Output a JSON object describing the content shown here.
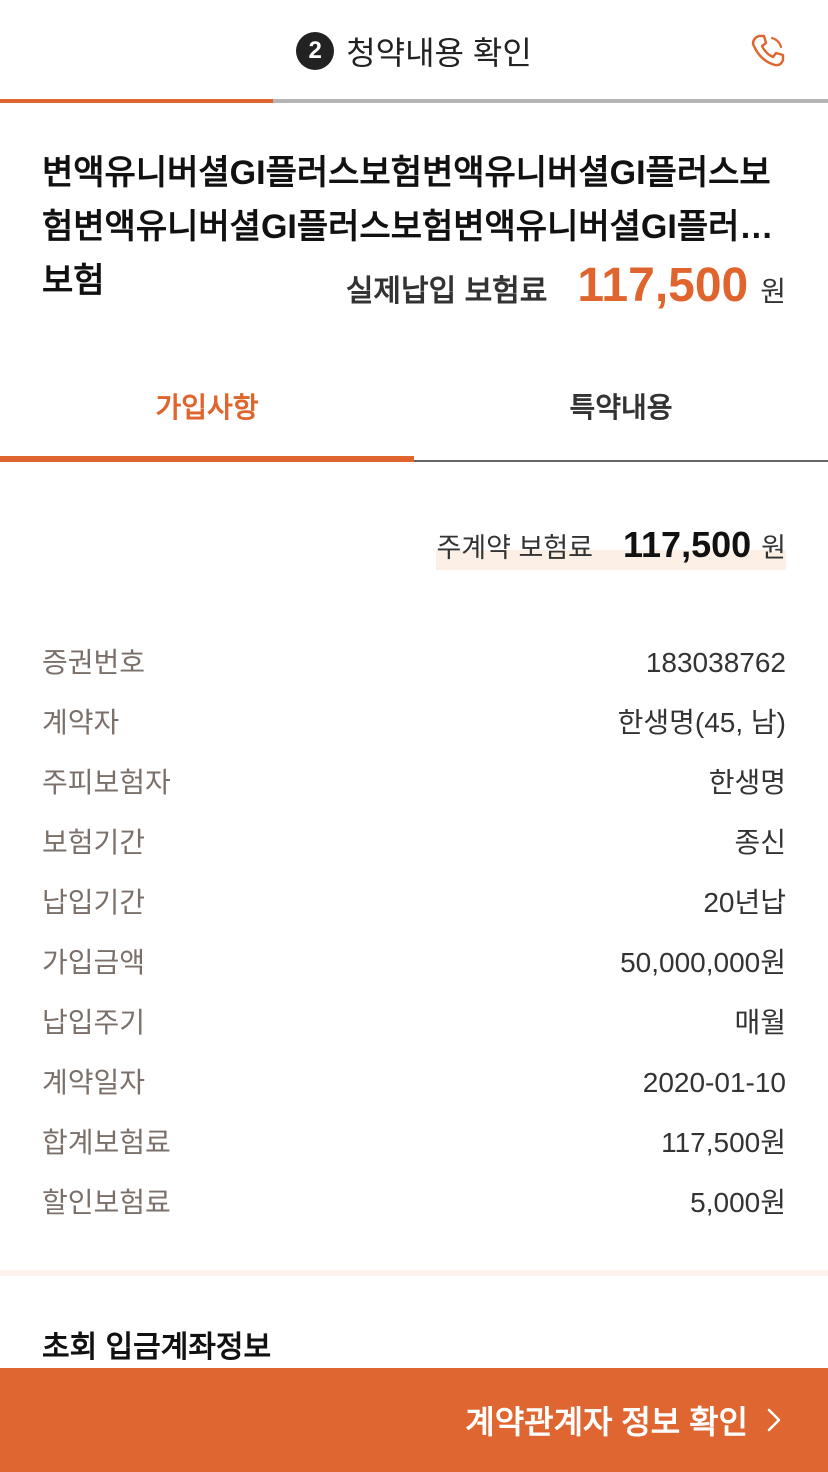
{
  "header": {
    "step_number": "2",
    "title": "청약내용 확인",
    "progress": 0.33
  },
  "product": {
    "name": "변액유니버셜GI플러스보험변액유니버셜GI플러스보험변액유니버셜GI플러스보험변액유니버셜GI플러스보험"
  },
  "actual_premium": {
    "label": "실제납입 보험료",
    "value": "117,500",
    "unit": "원"
  },
  "tabs": [
    {
      "label": "가입사항",
      "active": true
    },
    {
      "label": "특약내용",
      "active": false
    }
  ],
  "main_premium": {
    "label": "주계약 보험료",
    "value": "117,500",
    "unit": "원"
  },
  "details": [
    {
      "label": "증권번호",
      "value": "183038762"
    },
    {
      "label": "계약자",
      "value": "한생명(45, 남)"
    },
    {
      "label": "주피보험자",
      "value": "한생명"
    },
    {
      "label": "보험기간",
      "value": "종신"
    },
    {
      "label": "납입기간",
      "value": "20년납"
    },
    {
      "label": "가입금액",
      "value": "50,000,000원"
    },
    {
      "label": "납입주기",
      "value": "매월"
    },
    {
      "label": "계약일자",
      "value": "2020-01-10"
    },
    {
      "label": "합계보험료",
      "value": "117,500원"
    },
    {
      "label": "할인보험료",
      "value": "5,000원"
    }
  ],
  "section_title": "초회 입금계좌정보",
  "cta": {
    "label": "계약관계자 정보 확인"
  },
  "colors": {
    "accent": "#e0642e",
    "cta_bg": "#e06631",
    "tab_underline": "#666666"
  },
  "icons": {
    "phone": "phone-icon",
    "cta_arrow": "chevron-right-icon"
  }
}
